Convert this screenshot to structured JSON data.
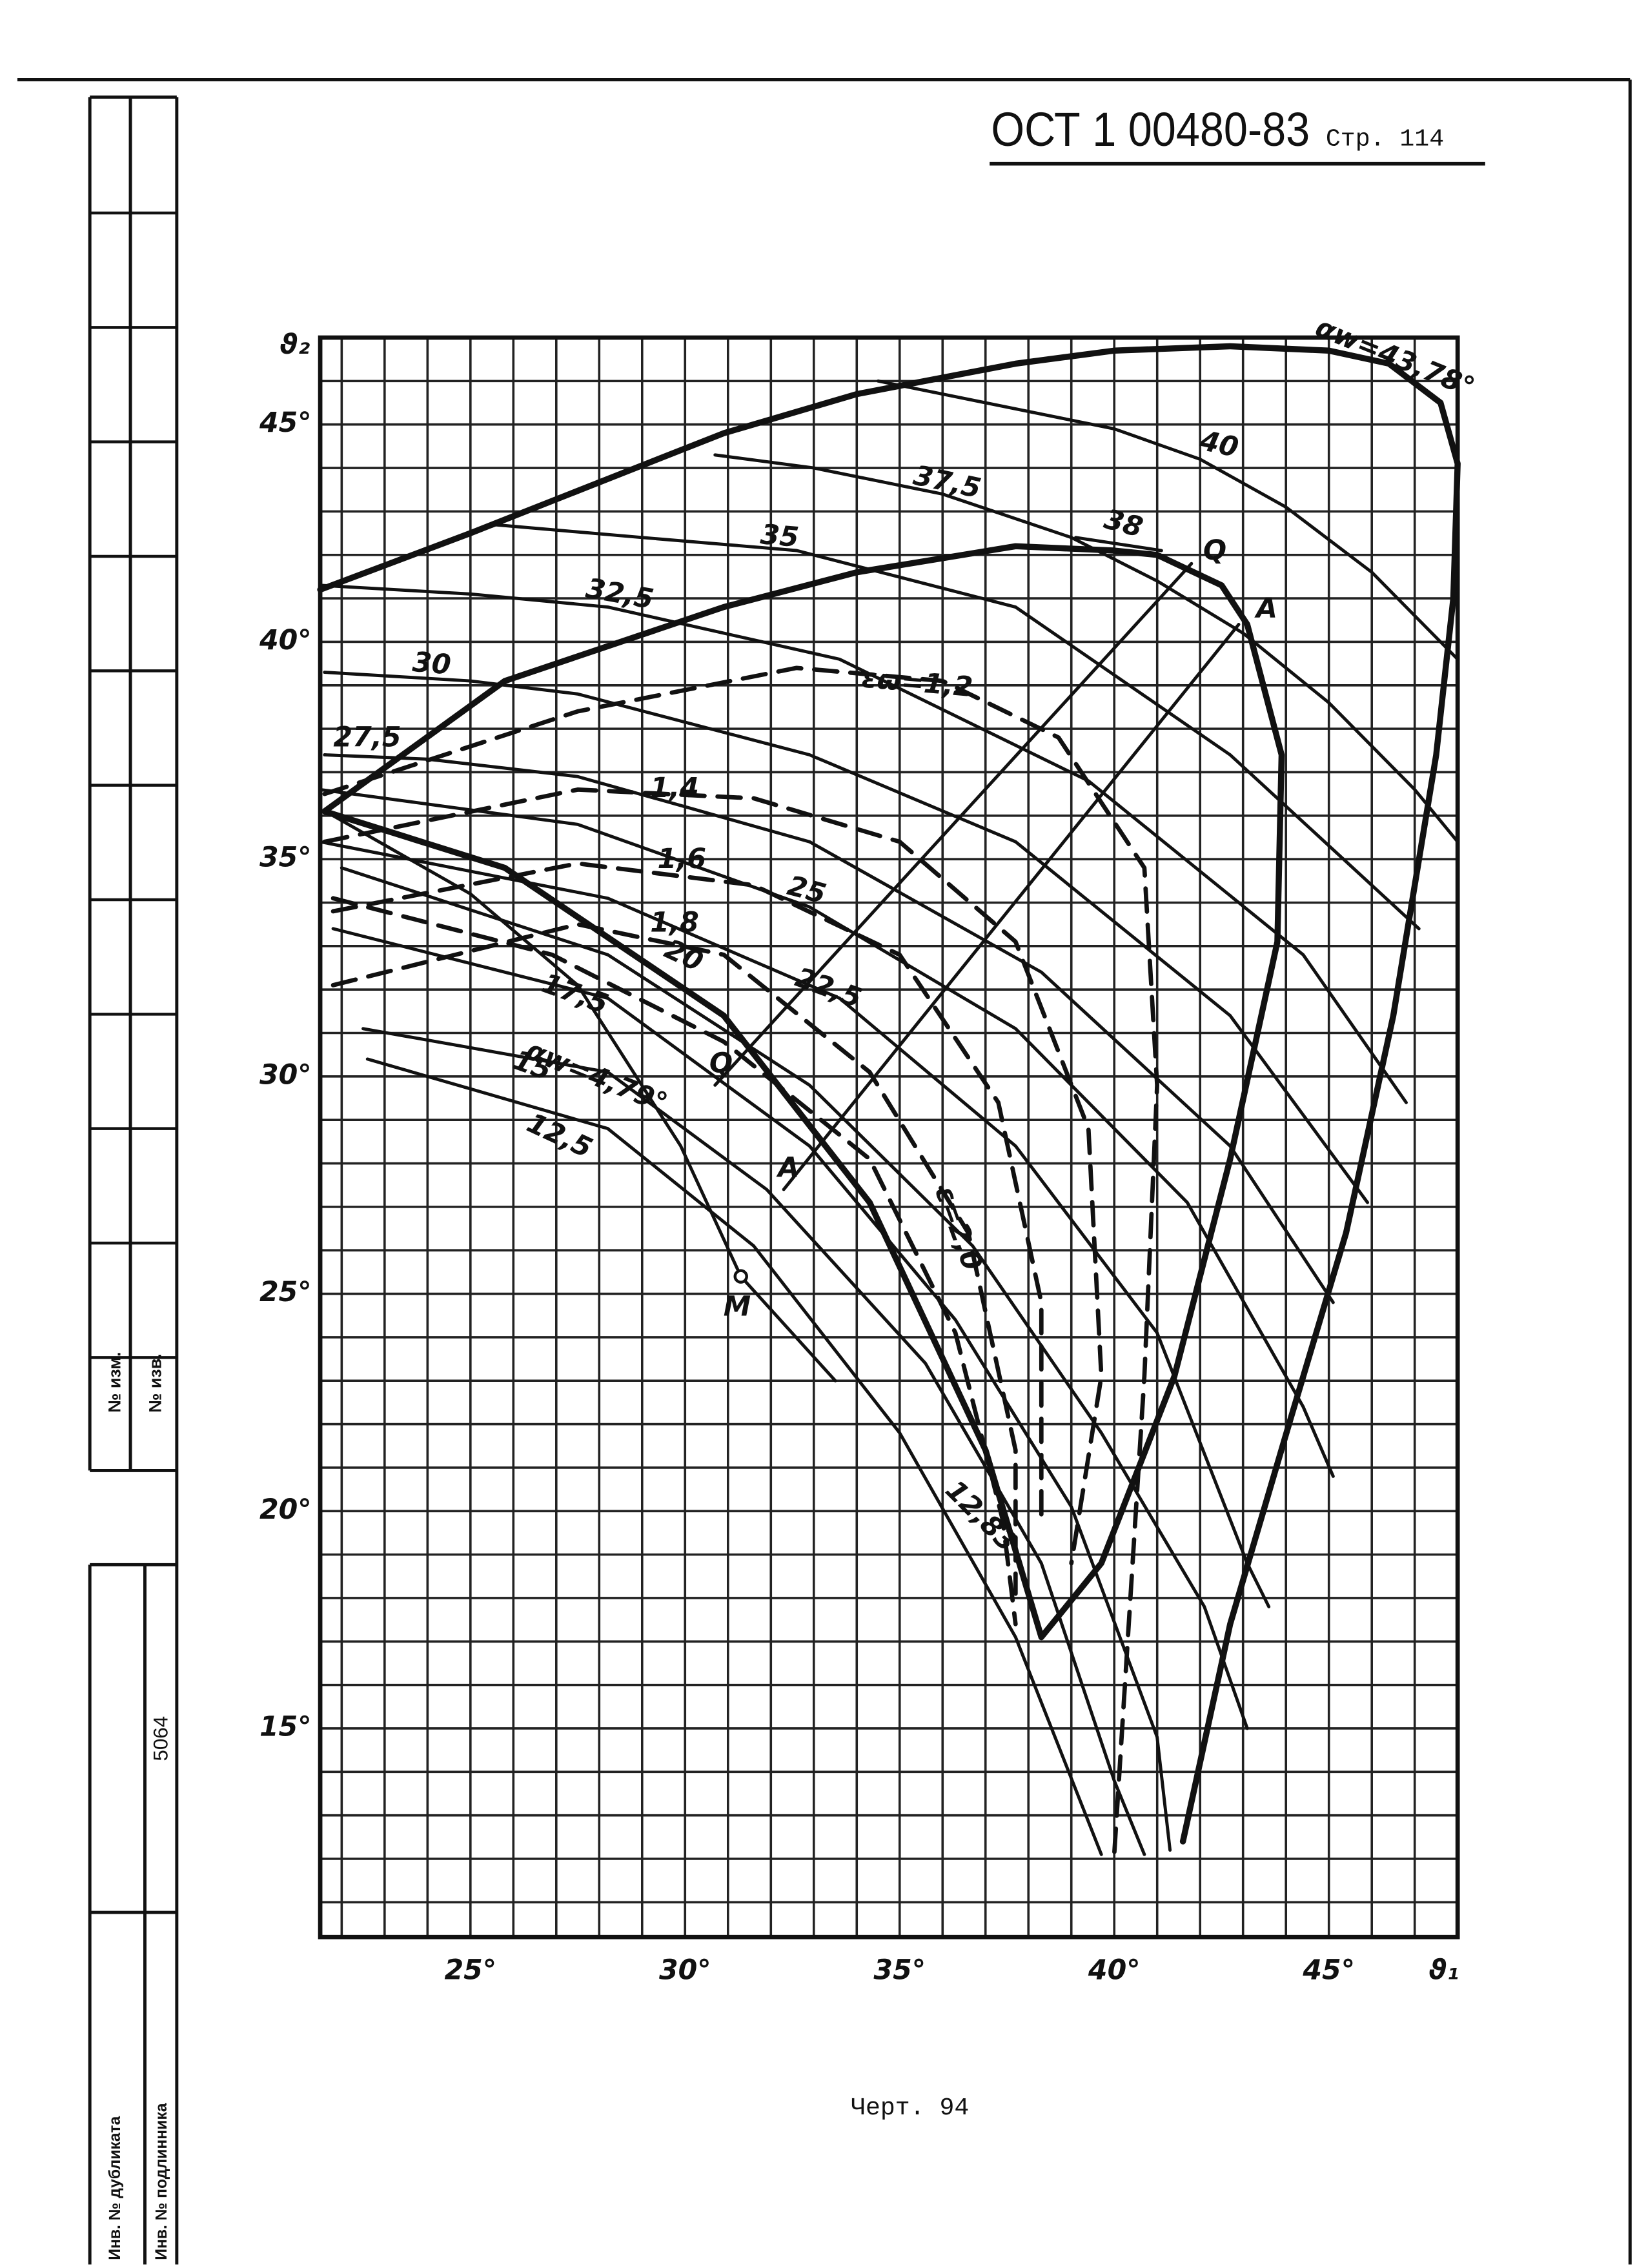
{
  "header": {
    "code": "ОСТ 1 00480-83",
    "page": "Стр. 114"
  },
  "footer": {
    "caption": "Черт. 94"
  },
  "stamp": {
    "top": [
      "№ изм.",
      "№ изв."
    ],
    "number": "5064",
    "bottom": [
      "Инв. № дубликата",
      "Инв. № подлинника"
    ]
  },
  "chart_data": {
    "type": "line",
    "xlabel": "ϑ₁",
    "ylabel": "ϑ₂",
    "xlim": [
      21.5,
      48
    ],
    "ylim": [
      10.2,
      47
    ],
    "xticks": [
      {
        "value": 25,
        "label": "25°"
      },
      {
        "value": 30,
        "label": "30°"
      },
      {
        "value": 35,
        "label": "35°"
      },
      {
        "value": 40,
        "label": "40°"
      },
      {
        "value": 45,
        "label": "45°"
      }
    ],
    "yticks": [
      {
        "value": 15,
        "label": "15°"
      },
      {
        "value": 20,
        "label": "20°"
      },
      {
        "value": 25,
        "label": "25°"
      },
      {
        "value": 30,
        "label": "30°"
      },
      {
        "value": 35,
        "label": "35°"
      },
      {
        "value": 40,
        "label": "40°"
      },
      {
        "value": 45,
        "label": "45°"
      }
    ],
    "grid": true,
    "grid_step": 1,
    "series": [
      {
        "name": "40",
        "style": "thin",
        "color": "#111",
        "x": [
          34.5,
          37,
          40,
          42,
          44,
          46,
          48
        ],
        "y": [
          46.0,
          45.5,
          44.9,
          44.2,
          43.1,
          41.6,
          39.6
        ]
      },
      {
        "name": "37,5",
        "style": "thin",
        "color": "#111",
        "x": [
          30.7,
          33,
          36,
          39,
          41,
          43,
          45,
          47,
          48
        ],
        "y": [
          44.3,
          44.0,
          43.4,
          42.4,
          41.4,
          40.2,
          38.6,
          36.6,
          35.4
        ]
      },
      {
        "name": "35",
        "style": "thin",
        "color": "#111",
        "x": [
          25.5,
          29,
          32.6,
          37.7,
          42.7,
          47.1
        ],
        "y": [
          42.7,
          42.4,
          42.1,
          40.8,
          37.4,
          33.4
        ]
      },
      {
        "name": "32,5",
        "style": "thin",
        "color": "#111",
        "x": [
          21.5,
          25,
          28.2,
          33.6,
          39.4,
          44.4,
          46.8
        ],
        "y": [
          41.3,
          41.1,
          40.8,
          39.6,
          36.8,
          32.8,
          29.4
        ]
      },
      {
        "name": "30",
        "style": "thin",
        "color": "#111",
        "x": [
          21.6,
          25,
          27.5,
          32.9,
          37.7,
          42.7,
          45.9
        ],
        "y": [
          39.3,
          39.1,
          38.8,
          37.4,
          35.4,
          31.4,
          27.1
        ]
      },
      {
        "name": "27,5",
        "style": "thin",
        "color": "#111",
        "x": [
          21.6,
          24,
          27.5,
          32.9,
          38.3,
          42.7,
          45.1
        ],
        "y": [
          37.4,
          37.3,
          36.9,
          35.4,
          32.4,
          28.4,
          24.8
        ]
      },
      {
        "name": "25",
        "style": "thin",
        "color": "#111",
        "x": [
          21.5,
          27.5,
          32.9,
          37.7,
          41.7,
          44.4,
          45.1
        ],
        "y": [
          36.6,
          35.8,
          33.9,
          31.1,
          27.1,
          22.4,
          20.8
        ]
      },
      {
        "name": "22,5",
        "style": "thin",
        "color": "#111",
        "x": [
          21.5,
          28.2,
          33.6,
          37.7,
          41.0,
          43.1,
          43.6
        ],
        "y": [
          35.4,
          34.1,
          31.8,
          28.4,
          24.1,
          18.8,
          17.8
        ]
      },
      {
        "name": "20",
        "style": "thin",
        "color": "#111",
        "x": [
          22,
          28.2,
          32.9,
          36.7,
          39.7,
          42.1,
          43.1
        ],
        "y": [
          34.8,
          32.8,
          29.8,
          26.1,
          21.8,
          17.8,
          15
        ]
      },
      {
        "name": "17,5",
        "style": "thin",
        "color": "#111",
        "x": [
          21.8,
          28.2,
          32.9,
          36.3,
          39.0,
          41,
          41.3
        ],
        "y": [
          33.4,
          31.8,
          28.4,
          24.4,
          20.1,
          14.8,
          12.2
        ]
      },
      {
        "name": "15",
        "style": "thin",
        "color": "#111",
        "x": [
          22.5,
          28.2,
          31.9,
          35.6,
          38.3,
          40.0,
          40.7
        ],
        "y": [
          31.1,
          30.1,
          27.4,
          23.4,
          18.8,
          13.8,
          12.1
        ]
      },
      {
        "name": "12,5",
        "style": "thin",
        "color": "#111",
        "x": [
          22.6,
          28.2,
          31.6,
          35,
          37.7,
          39.7
        ],
        "y": [
          30.4,
          28.8,
          26.1,
          21.8,
          17.1,
          12.1
        ]
      },
      {
        "name": "38",
        "style": "thin",
        "color": "#111",
        "x": [
          39.1,
          41.1
        ],
        "y": [
          42.4,
          42.1
        ]
      },
      {
        "name": "αw=43,78°",
        "style": "bold",
        "color": "#111",
        "x": [
          21.5,
          25,
          30.9,
          34,
          37.7,
          40,
          42.7,
          45,
          46.4,
          47.6,
          48,
          47.9,
          47.5,
          46.5,
          45.4,
          44.1,
          42.7,
          41.6
        ],
        "y": [
          41.2,
          42.5,
          44.8,
          45.7,
          46.4,
          46.7,
          46.8,
          46.7,
          46.4,
          45.5,
          44.1,
          41,
          37.4,
          31.4,
          26.4,
          22.1,
          17.4,
          12.4
        ]
      },
      {
        "name": "12,83",
        "style": "bold",
        "color": "#111",
        "x": [
          38.3,
          37,
          34.3,
          30.9,
          25.8,
          21.6,
          25.8,
          30.9,
          34,
          37.7,
          40,
          41,
          42.5,
          43.1,
          43.9,
          43.8,
          42.7,
          41.4,
          39.7,
          38.3
        ],
        "y": [
          17.1,
          21.4,
          27.1,
          31.4,
          34.8,
          36.1,
          39.1,
          40.8,
          41.6,
          42.2,
          42.1,
          42.0,
          41.3,
          40.4,
          37.4,
          33.1,
          28.1,
          23.1,
          18.8,
          17.1
        ]
      },
      {
        "name": "αw=4,79°",
        "style": "thin",
        "color": "#111",
        "x": [
          21.8,
          25,
          27.5,
          29.9,
          31.3,
          33.5
        ],
        "y": [
          36.0,
          34.2,
          32.1,
          28.4,
          25.4,
          23.0
        ]
      },
      {
        "name": "εω=1,2",
        "style": "dashed",
        "color": "#111",
        "x": [
          21.6,
          27.5,
          32.6,
          36,
          38.7,
          40.7,
          41,
          40.7,
          40.0
        ],
        "y": [
          36.5,
          38.4,
          39.4,
          39.1,
          37.8,
          34.8,
          29.8,
          23.1,
          12.1
        ]
      },
      {
        "name": "1,4",
        "style": "dashed",
        "color": "#111",
        "x": [
          21.6,
          27.5,
          31.6,
          35,
          37.7,
          39.4,
          39.7,
          39
        ],
        "y": [
          35.4,
          36.6,
          36.4,
          35.4,
          33.1,
          28.8,
          23.1,
          18.8
        ]
      },
      {
        "name": "1,6",
        "style": "dashed",
        "color": "#111",
        "x": [
          21.8,
          27.5,
          31.6,
          35,
          37.3,
          38.3,
          38.3
        ],
        "y": [
          33.8,
          34.9,
          34.4,
          32.8,
          29.4,
          24.8,
          19.8
        ]
      },
      {
        "name": "1,8",
        "style": "dashed",
        "color": "#111",
        "x": [
          21.8,
          27.5,
          30.9,
          34.3,
          36.6,
          37.7,
          37.7
        ],
        "y": [
          32.1,
          33.5,
          32.8,
          30.1,
          26.4,
          21.4,
          18.1
        ]
      },
      {
        "name": "ε=2,0",
        "style": "dashed",
        "color": "#111",
        "x": [
          21.8,
          26.9,
          30.9,
          34.3,
          36.3,
          37.4,
          37.7
        ],
        "y": [
          34.1,
          32.8,
          30.8,
          28.1,
          24.1,
          19.8,
          17.4
        ]
      },
      {
        "name": "Q",
        "style": "thin",
        "color": "#111",
        "x": [
          30.7,
          41.8
        ],
        "y": [
          29.8,
          41.8
        ]
      },
      {
        "name": "A",
        "style": "thin",
        "color": "#111",
        "x": [
          32.3,
          42.9
        ],
        "y": [
          27.4,
          40.4
        ]
      }
    ],
    "points": [
      {
        "label": "M",
        "x": 31.3,
        "y": 25.4
      }
    ]
  }
}
